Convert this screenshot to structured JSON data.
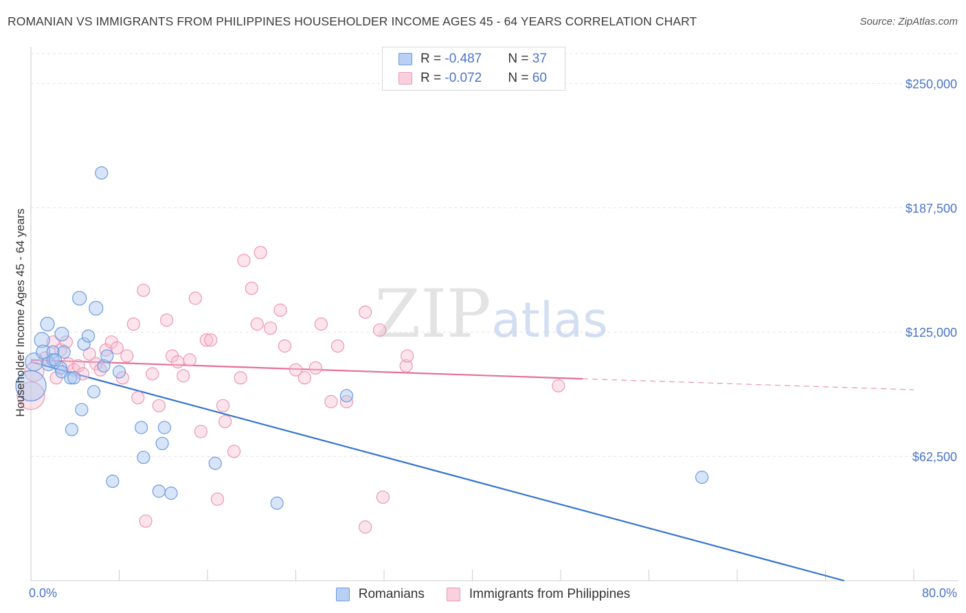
{
  "header": {
    "title": "ROMANIAN VS IMMIGRANTS FROM PHILIPPINES HOUSEHOLDER INCOME AGES 45 - 64 YEARS CORRELATION CHART",
    "source": "Source: ZipAtlas.com"
  },
  "watermark": {
    "zip": "ZIP",
    "atlas": "atlas"
  },
  "legend": {
    "rows": [
      {
        "r_label": "R = ",
        "r_value": "-0.487",
        "n_label": "N = ",
        "n_value": "37"
      },
      {
        "r_label": "R = ",
        "r_value": "-0.072",
        "n_label": "N = ",
        "n_value": "60"
      }
    ]
  },
  "chart_data": {
    "type": "scatter",
    "ylabel": "Householder Income Ages 45 - 64 years",
    "x_ticks": [
      "0.0%",
      "80.0%"
    ],
    "y_ticks": [
      "$62,500",
      "$125,000",
      "$187,500",
      "$250,000"
    ],
    "xlim": [
      0,
      80
    ],
    "ylim": [
      0,
      265000
    ],
    "grid": true,
    "legend_position": "top-center",
    "series": [
      {
        "name": "Romanians",
        "color": "#6b9be0",
        "fill": "#a9c6f0",
        "line_color": "#3572d1",
        "r": -0.487,
        "n": 37,
        "trend": {
          "x0": 0,
          "y0": 110000,
          "x1": 73.7,
          "y1": 0
        },
        "points": [
          [
            0.3,
            110000,
            13
          ],
          [
            0.0,
            98000,
            22
          ],
          [
            1.0,
            121000,
            11
          ],
          [
            1.5,
            129000,
            10
          ],
          [
            1.1,
            115000,
            10
          ],
          [
            1.6,
            109000,
            10
          ],
          [
            2.0,
            115000,
            9
          ],
          [
            2.0,
            111000,
            9
          ],
          [
            2.8,
            124000,
            10
          ],
          [
            3.0,
            115000,
            9
          ],
          [
            2.7,
            107000,
            9
          ],
          [
            2.8,
            105000,
            9
          ],
          [
            3.6,
            102000,
            9
          ],
          [
            3.9,
            102000,
            9
          ],
          [
            3.7,
            76000,
            9
          ],
          [
            4.4,
            142000,
            10
          ],
          [
            4.8,
            119000,
            9
          ],
          [
            5.2,
            123000,
            9
          ],
          [
            4.6,
            86000,
            9
          ],
          [
            5.7,
            95000,
            9
          ],
          [
            5.9,
            137000,
            10
          ],
          [
            6.4,
            205000,
            9
          ],
          [
            6.6,
            108000,
            9
          ],
          [
            6.9,
            113000,
            9
          ],
          [
            7.4,
            50000,
            9
          ],
          [
            8.0,
            105000,
            9
          ],
          [
            10.0,
            77000,
            9
          ],
          [
            10.2,
            62000,
            9
          ],
          [
            11.6,
            45000,
            9
          ],
          [
            11.9,
            69000,
            9
          ],
          [
            12.1,
            77000,
            9
          ],
          [
            12.7,
            44000,
            9
          ],
          [
            16.7,
            59000,
            9
          ],
          [
            22.3,
            39000,
            9
          ],
          [
            28.6,
            93000,
            9
          ],
          [
            60.8,
            52000,
            9
          ],
          [
            2.2,
            111000,
            9
          ]
        ]
      },
      {
        "name": "Immigrants from Philippines",
        "color": "#ec96b3",
        "fill": "#f8c4d5",
        "line_color": "#e66e97",
        "r": -0.072,
        "n": 60,
        "trend": {
          "x0": 0,
          "y0": 111000,
          "x1": 50.0,
          "y1": 101500
        },
        "trend_dashed": {
          "x0": 50.0,
          "y0": 101500,
          "x1": 80.0,
          "y1": 96000
        },
        "points": [
          [
            0.0,
            93000,
            20
          ],
          [
            0.3,
            105000,
            14
          ],
          [
            1.3,
            112000,
            9
          ],
          [
            2.0,
            120000,
            9
          ],
          [
            2.3,
            102000,
            9
          ],
          [
            2.7,
            116000,
            9
          ],
          [
            3.2,
            120000,
            9
          ],
          [
            3.4,
            109000,
            9
          ],
          [
            3.9,
            106000,
            9
          ],
          [
            4.3,
            108000,
            9
          ],
          [
            4.7,
            104000,
            9
          ],
          [
            5.3,
            114000,
            9
          ],
          [
            5.9,
            109000,
            9
          ],
          [
            6.3,
            106000,
            9
          ],
          [
            6.8,
            116000,
            9
          ],
          [
            7.3,
            120000,
            9
          ],
          [
            7.8,
            117000,
            9
          ],
          [
            8.3,
            102000,
            9
          ],
          [
            8.7,
            113000,
            9
          ],
          [
            9.3,
            129000,
            9
          ],
          [
            9.7,
            92000,
            9
          ],
          [
            10.2,
            146000,
            9
          ],
          [
            11.0,
            104000,
            9
          ],
          [
            11.6,
            88000,
            9
          ],
          [
            12.3,
            131000,
            9
          ],
          [
            12.8,
            113000,
            9
          ],
          [
            13.3,
            110000,
            9
          ],
          [
            13.8,
            103000,
            9
          ],
          [
            14.4,
            111000,
            9
          ],
          [
            14.9,
            142000,
            9
          ],
          [
            15.4,
            75000,
            9
          ],
          [
            15.9,
            121000,
            9
          ],
          [
            16.3,
            121000,
            9
          ],
          [
            16.9,
            41000,
            9
          ],
          [
            17.4,
            88000,
            9
          ],
          [
            17.6,
            80000,
            9
          ],
          [
            18.4,
            65000,
            9
          ],
          [
            19.0,
            102000,
            9
          ],
          [
            19.3,
            161000,
            9
          ],
          [
            20.0,
            147000,
            9
          ],
          [
            20.5,
            129000,
            9
          ],
          [
            20.8,
            165000,
            9
          ],
          [
            21.7,
            127000,
            9
          ],
          [
            22.6,
            136000,
            9
          ],
          [
            23.0,
            118000,
            9
          ],
          [
            24.0,
            106000,
            9
          ],
          [
            24.8,
            102000,
            9
          ],
          [
            25.8,
            107000,
            9
          ],
          [
            26.3,
            129000,
            9
          ],
          [
            27.2,
            90000,
            9
          ],
          [
            27.8,
            118000,
            9
          ],
          [
            28.6,
            90000,
            9
          ],
          [
            30.3,
            135000,
            9
          ],
          [
            30.3,
            27000,
            9
          ],
          [
            31.6,
            126000,
            9
          ],
          [
            31.9,
            42000,
            9
          ],
          [
            34.0,
            108000,
            9
          ],
          [
            34.1,
            113000,
            9
          ],
          [
            47.8,
            98000,
            9
          ],
          [
            10.4,
            30000,
            9
          ]
        ]
      }
    ]
  }
}
